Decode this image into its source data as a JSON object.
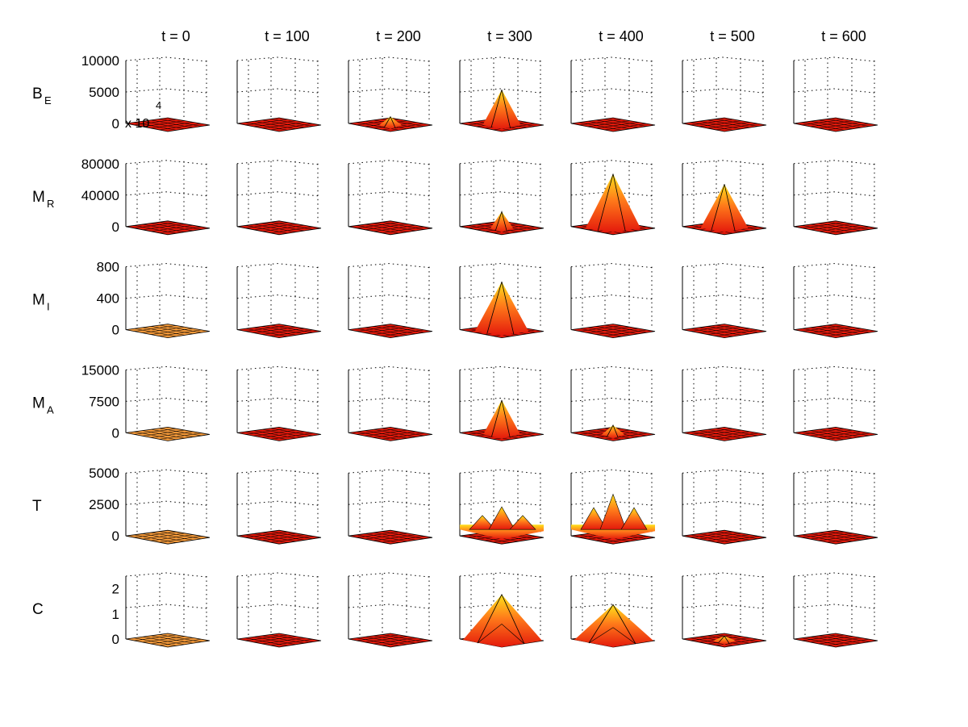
{
  "chart_data": {
    "type": "surface-grid",
    "title": "",
    "columns": [
      "t = 0",
      "t = 100",
      "t = 200",
      "t = 300",
      "t = 400",
      "t = 500",
      "t = 600"
    ],
    "rows": [
      {
        "label": "B",
        "sub": "E",
        "zlim": [
          0,
          10000
        ],
        "zticks": [
          "0",
          "5000",
          "10000"
        ],
        "multiplier": {
          "base": "x 10",
          "exp": "4"
        },
        "peaks": [
          150,
          120,
          1200,
          5500,
          150,
          150,
          150
        ],
        "shape": [
          "flat",
          "flat",
          "peak",
          "peak",
          "flat",
          "flat",
          "flat"
        ]
      },
      {
        "label": "M",
        "sub": "R",
        "zlim": [
          0,
          80000
        ],
        "zticks": [
          "0",
          "40000",
          "80000"
        ],
        "peaks": [
          3000,
          3000,
          3000,
          20000,
          68000,
          55000,
          3000
        ],
        "shape": [
          "flat",
          "flat",
          "flat",
          "peak",
          "peak",
          "peak",
          "flat"
        ]
      },
      {
        "label": "M",
        "sub": "I",
        "zlim": [
          0,
          800
        ],
        "zticks": [
          "0",
          "400",
          "800"
        ],
        "peaks": [
          10,
          10,
          10,
          620,
          10,
          10,
          10
        ],
        "shape": [
          "flat",
          "flat",
          "flat",
          "peak",
          "flat",
          "flat",
          "flat"
        ]
      },
      {
        "label": "M",
        "sub": "A",
        "zlim": [
          0,
          15000
        ],
        "zticks": [
          "0",
          "7500",
          "15000"
        ],
        "peaks": [
          100,
          100,
          100,
          8000,
          2000,
          100,
          100
        ],
        "shape": [
          "flat",
          "flat",
          "flat",
          "peak",
          "peak",
          "flat",
          "flat"
        ]
      },
      {
        "label": "T",
        "sub": "",
        "zlim": [
          0,
          5000
        ],
        "zticks": [
          "0",
          "2500",
          "5000"
        ],
        "peaks": [
          40,
          40,
          40,
          1800,
          2800,
          200,
          40
        ],
        "shape": [
          "flat",
          "flat",
          "flat",
          "multi",
          "multi",
          "flat",
          "flat"
        ]
      },
      {
        "label": "C",
        "sub": "",
        "zlim": [
          0,
          2.5
        ],
        "zticks": [
          "0",
          "1",
          "2"
        ],
        "peaks": [
          0.02,
          0.05,
          0.06,
          1.8,
          1.4,
          0.15,
          0.05
        ],
        "shape": [
          "flat",
          "flat",
          "flat",
          "broad",
          "broad",
          "peak",
          "flat"
        ]
      }
    ],
    "grid": true,
    "colormap": "hot",
    "colors": {
      "low": "#e41a0c",
      "mid": "#ff7a1a",
      "high": "#ffe21a",
      "flat_orange": "#f59a3a"
    }
  }
}
